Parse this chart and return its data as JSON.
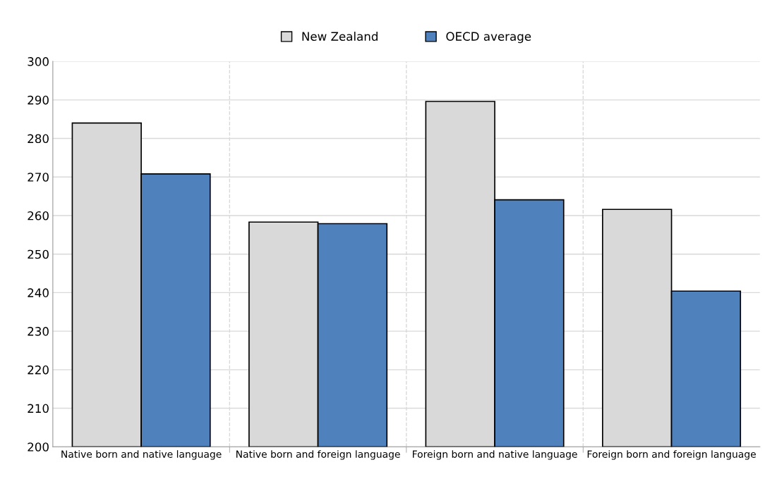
{
  "chart_data": {
    "type": "bar",
    "categories": [
      "Native born and native language",
      "Native born and foreign language",
      "Foreign born and native language",
      "Foreign born and foreign language"
    ],
    "series": [
      {
        "name": "New Zealand",
        "color": "#d9d9d9",
        "values": [
          284.0,
          258.3,
          289.6,
          261.6
        ]
      },
      {
        "name": "OECD average",
        "color": "#4f81bd",
        "values": [
          270.8,
          257.9,
          264.1,
          240.4
        ]
      }
    ],
    "ylim": [
      200,
      300
    ],
    "yticks": [
      200,
      210,
      220,
      230,
      240,
      250,
      260,
      270,
      280,
      290,
      300
    ],
    "grid": true,
    "legend": "top"
  }
}
